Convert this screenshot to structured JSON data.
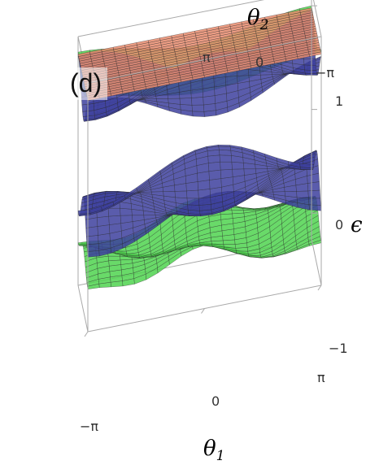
{
  "chart_data": {
    "type": "surface3d",
    "panel_label": "(d)",
    "axes": {
      "x": {
        "title": "θ",
        "title_sub": "1",
        "ticks": [
          "−π",
          "0",
          "π"
        ],
        "range": [
          -3.1416,
          3.1416
        ]
      },
      "y": {
        "title": "θ",
        "title_sub": "2",
        "ticks": [
          "π",
          "0",
          "−π"
        ],
        "range": [
          -3.1416,
          3.1416
        ]
      },
      "z": {
        "title": "ϵ",
        "ticks": [
          "1",
          "0",
          "−1"
        ],
        "range": [
          -1.25,
          1.15
        ]
      }
    },
    "grid": false,
    "surfaces": [
      {
        "level": 1.0,
        "color": "#e98c6e",
        "note": "flat band"
      },
      {
        "level": 0.75,
        "color": "#3d3f9e"
      },
      {
        "level": 0.9,
        "color": "#4fd44f"
      },
      {
        "level": -0.35,
        "color": "#3d3f9e"
      },
      {
        "level": -0.75,
        "color": "#4fd44f"
      }
    ]
  },
  "colors": {
    "box": "#a9a9a9",
    "mesh": "#2a2a2a",
    "green": "#4fd44f",
    "blue": "#3d3f9e",
    "orange": "#e98c6e"
  }
}
